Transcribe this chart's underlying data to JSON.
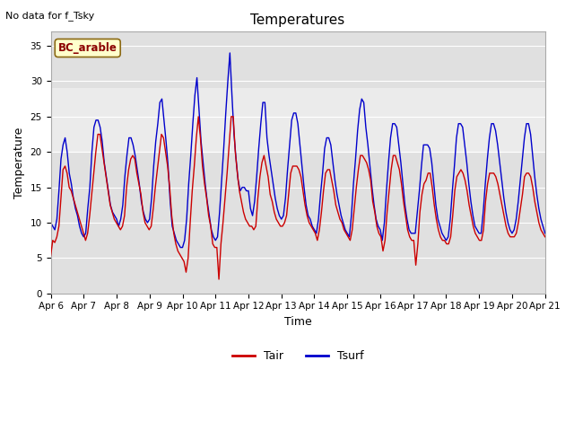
{
  "title": "Temperatures",
  "xlabel": "Time",
  "ylabel": "Temperature",
  "note": "No data for f_Tsky",
  "site_label": "BC_arable",
  "ylim": [
    0,
    37
  ],
  "yticks": [
    0,
    5,
    10,
    15,
    20,
    25,
    30,
    35
  ],
  "color_tair": "#cc0000",
  "color_tsurf": "#0000cc",
  "bg_color": "#e0e0e0",
  "bg_light_color": "#ebebeb",
  "shade_min": 20,
  "shade_max": 29,
  "x_tick_labels": [
    "Apr 6",
    "Apr 7",
    "Apr 8",
    "Apr 9",
    "Apr 10",
    "Apr 11",
    "Apr 12",
    "Apr 13",
    "Apr 14",
    "Apr 15",
    "Apr 16",
    "Apr 17",
    "Apr 18",
    "Apr 19",
    "Apr 20",
    "Apr 21"
  ],
  "tair": [
    5.3,
    7.5,
    7.2,
    8.0,
    9.5,
    13.5,
    17.5,
    18.0,
    17.0,
    15.0,
    14.5,
    13.5,
    12.5,
    11.5,
    10.5,
    9.5,
    8.5,
    7.5,
    8.5,
    11.0,
    14.0,
    17.0,
    20.0,
    22.5,
    22.5,
    20.5,
    18.5,
    16.5,
    14.5,
    12.5,
    11.5,
    10.5,
    10.0,
    9.5,
    9.0,
    9.5,
    11.0,
    15.0,
    17.5,
    19.0,
    19.5,
    19.0,
    17.0,
    15.5,
    14.0,
    11.5,
    10.0,
    9.5,
    9.0,
    9.5,
    12.0,
    15.0,
    17.5,
    20.0,
    22.5,
    22.0,
    20.0,
    18.0,
    15.0,
    11.0,
    8.5,
    7.0,
    6.0,
    5.5,
    5.0,
    4.5,
    3.0,
    5.0,
    10.0,
    14.5,
    18.0,
    22.0,
    25.0,
    22.0,
    18.0,
    15.5,
    13.5,
    11.0,
    9.5,
    7.0,
    6.5,
    6.5,
    2.0,
    7.0,
    10.0,
    13.5,
    17.0,
    21.0,
    25.0,
    25.0,
    20.0,
    17.0,
    14.5,
    13.0,
    11.5,
    10.5,
    10.0,
    9.5,
    9.5,
    9.0,
    9.5,
    13.5,
    16.5,
    18.5,
    19.5,
    18.0,
    16.5,
    14.0,
    13.0,
    11.5,
    10.5,
    10.0,
    9.5,
    9.5,
    10.0,
    11.0,
    14.0,
    17.0,
    18.0,
    18.0,
    18.0,
    17.5,
    16.5,
    14.5,
    12.5,
    11.0,
    10.0,
    9.5,
    9.0,
    8.5,
    7.5,
    9.0,
    11.5,
    14.5,
    17.0,
    17.5,
    17.5,
    16.0,
    14.5,
    12.5,
    11.5,
    10.5,
    10.0,
    9.0,
    8.5,
    8.0,
    7.5,
    9.0,
    12.0,
    15.0,
    17.5,
    19.5,
    19.5,
    19.0,
    18.5,
    17.5,
    16.0,
    13.0,
    11.5,
    9.5,
    8.5,
    8.0,
    6.0,
    7.5,
    11.5,
    14.5,
    17.5,
    19.5,
    19.5,
    18.5,
    17.5,
    15.5,
    13.0,
    11.0,
    9.0,
    8.0,
    7.5,
    7.5,
    4.0,
    7.0,
    11.5,
    14.0,
    15.5,
    16.0,
    17.0,
    17.0,
    15.0,
    12.5,
    10.5,
    9.0,
    8.0,
    7.5,
    7.5,
    7.0,
    7.0,
    8.0,
    11.0,
    14.5,
    16.5,
    17.0,
    17.5,
    17.0,
    16.0,
    14.5,
    12.5,
    11.0,
    9.5,
    8.5,
    8.0,
    7.5,
    7.5,
    9.0,
    13.0,
    15.5,
    17.0,
    17.0,
    17.0,
    16.5,
    15.5,
    14.0,
    12.5,
    11.0,
    9.5,
    8.5,
    8.0,
    8.0,
    8.0,
    8.5,
    10.0,
    12.0,
    14.0,
    16.5,
    17.0,
    17.0,
    16.5,
    15.0,
    13.0,
    11.5,
    10.0,
    9.0,
    8.5,
    8.0
  ],
  "tsurf": [
    10.0,
    9.5,
    9.0,
    10.5,
    14.5,
    19.0,
    21.0,
    22.0,
    20.0,
    17.0,
    15.5,
    13.5,
    12.0,
    11.0,
    9.5,
    8.5,
    8.0,
    8.5,
    12.0,
    15.0,
    20.0,
    23.5,
    24.5,
    24.5,
    23.5,
    21.5,
    18.5,
    16.5,
    14.5,
    12.5,
    11.5,
    11.0,
    10.5,
    9.5,
    10.5,
    12.5,
    16.5,
    19.5,
    22.0,
    22.0,
    21.0,
    19.5,
    17.5,
    15.5,
    13.0,
    11.5,
    10.5,
    10.0,
    10.5,
    13.5,
    18.0,
    21.5,
    24.0,
    27.0,
    27.5,
    24.5,
    21.5,
    18.0,
    13.0,
    9.5,
    8.5,
    7.5,
    7.0,
    6.5,
    6.5,
    7.5,
    10.5,
    15.5,
    19.5,
    24.0,
    28.0,
    30.5,
    26.0,
    21.5,
    18.5,
    15.5,
    13.0,
    11.0,
    9.0,
    8.0,
    7.5,
    8.0,
    11.5,
    16.0,
    20.5,
    25.5,
    30.0,
    34.0,
    28.0,
    22.5,
    19.0,
    16.0,
    14.5,
    15.0,
    15.0,
    14.5,
    14.5,
    12.0,
    11.0,
    13.0,
    16.5,
    20.5,
    24.0,
    27.0,
    27.0,
    22.0,
    19.5,
    17.5,
    15.5,
    13.5,
    12.0,
    11.0,
    10.5,
    11.0,
    13.5,
    17.5,
    21.0,
    24.5,
    25.5,
    25.5,
    24.0,
    21.0,
    18.0,
    15.0,
    12.5,
    11.0,
    10.5,
    9.5,
    9.0,
    8.5,
    10.5,
    14.0,
    17.0,
    20.5,
    22.0,
    22.0,
    21.0,
    18.5,
    16.0,
    14.0,
    12.5,
    11.0,
    10.0,
    9.0,
    8.5,
    8.0,
    11.0,
    15.5,
    19.0,
    23.0,
    26.0,
    27.5,
    27.0,
    23.5,
    21.0,
    18.0,
    15.0,
    12.5,
    10.5,
    9.5,
    9.0,
    7.5,
    10.0,
    14.5,
    18.5,
    22.0,
    24.0,
    24.0,
    23.5,
    21.0,
    18.5,
    15.5,
    12.5,
    10.5,
    9.0,
    8.5,
    8.5,
    8.5,
    11.5,
    14.5,
    18.0,
    21.0,
    21.0,
    21.0,
    20.5,
    18.5,
    15.5,
    12.5,
    10.5,
    9.5,
    8.5,
    8.0,
    7.5,
    8.0,
    10.5,
    14.5,
    18.0,
    22.0,
    24.0,
    24.0,
    23.5,
    21.0,
    18.5,
    15.5,
    13.0,
    11.0,
    9.5,
    9.0,
    8.5,
    8.5,
    11.5,
    15.5,
    19.0,
    22.0,
    24.0,
    24.0,
    23.0,
    21.0,
    18.5,
    16.0,
    13.5,
    11.5,
    10.0,
    9.0,
    8.5,
    9.0,
    10.5,
    13.0,
    16.0,
    19.0,
    22.0,
    24.0,
    24.0,
    22.5,
    19.5,
    16.5,
    14.0,
    12.0,
    10.5,
    9.5,
    8.5
  ]
}
